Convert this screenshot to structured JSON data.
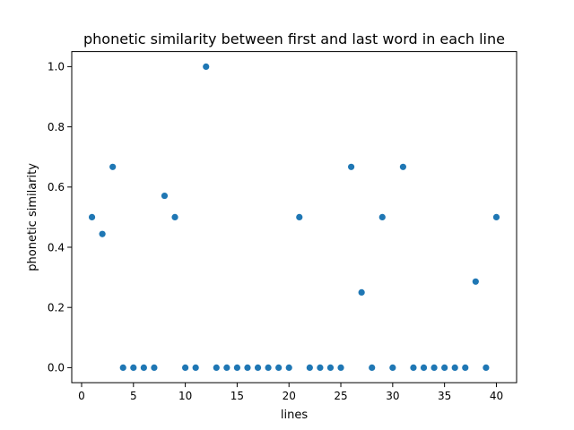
{
  "chart_data": {
    "type": "scatter",
    "title": "phonetic similarity between first and last word in each line",
    "xlabel": "lines",
    "ylabel": "phonetic similarity",
    "xlim": [
      -0.95,
      41.95
    ],
    "ylim": [
      -0.05,
      1.05
    ],
    "xticks": [
      0,
      5,
      10,
      15,
      20,
      25,
      30,
      35,
      40
    ],
    "yticks": [
      0.0,
      0.2,
      0.4,
      0.6,
      0.8,
      1.0
    ],
    "ytick_labels": [
      "0.0",
      "0.2",
      "0.4",
      "0.6",
      "0.8",
      "1.0"
    ],
    "grid": false,
    "point_color": "#1f77b4",
    "x": [
      1,
      2,
      3,
      4,
      5,
      6,
      7,
      8,
      9,
      10,
      11,
      12,
      13,
      14,
      15,
      16,
      17,
      18,
      19,
      20,
      21,
      22,
      23,
      24,
      25,
      26,
      27,
      28,
      29,
      30,
      31,
      32,
      33,
      34,
      35,
      36,
      37,
      38,
      39,
      40
    ],
    "y": [
      0.5,
      0.444,
      0.667,
      0,
      0,
      0,
      0,
      0.571,
      0.5,
      0,
      0,
      1.0,
      0,
      0,
      0,
      0,
      0,
      0,
      0,
      0,
      0.5,
      0,
      0,
      0,
      0,
      0.667,
      0.25,
      0,
      0.5,
      0,
      0.667,
      0,
      0,
      0,
      0,
      0,
      0,
      0.286,
      0,
      0.5
    ]
  }
}
